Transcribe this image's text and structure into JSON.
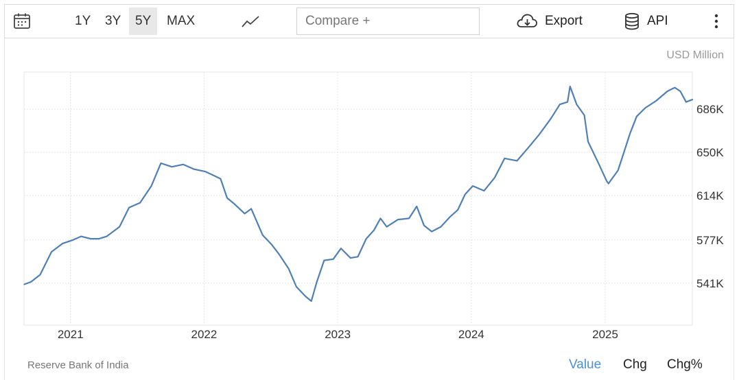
{
  "toolbar": {
    "ranges": [
      {
        "label": "1Y",
        "active": false
      },
      {
        "label": "3Y",
        "active": false
      },
      {
        "label": "5Y",
        "active": true
      },
      {
        "label": "MAX",
        "active": false
      }
    ],
    "compare_placeholder": "Compare +",
    "export_label": "Export",
    "api_label": "API",
    "icons": [
      "calendar-icon",
      "line-chart-icon",
      "cloud-download-icon",
      "database-icon",
      "more-vertical-icon"
    ]
  },
  "unit_label": "USD Million",
  "source": "Reserve Bank of India",
  "footer_tabs": [
    {
      "label": "Value",
      "active": true
    },
    {
      "label": "Chg",
      "active": false
    },
    {
      "label": "Chg%",
      "active": false
    }
  ],
  "colors": {
    "line": "#4f7fb4",
    "active_tab": "#4a90d6",
    "grid": "#e5e5e5"
  },
  "chart_data": {
    "type": "line",
    "title": "",
    "xlabel": "",
    "ylabel": "",
    "x_ticks": [
      "2021",
      "2022",
      "2023",
      "2024",
      "2025"
    ],
    "y_ticks": [
      {
        "value": 541000,
        "label": "541K"
      },
      {
        "value": 577000,
        "label": "577K"
      },
      {
        "value": 614000,
        "label": "614K"
      },
      {
        "value": 650000,
        "label": "650K"
      },
      {
        "value": 686000,
        "label": "686K"
      }
    ],
    "ylim": [
      506000,
      717000
    ],
    "xlim": [
      "2020-08-27",
      "2025-08-27"
    ],
    "grid": true,
    "series": [
      {
        "x": [
          "2020-08-28",
          "2020-09-15",
          "2020-10-10",
          "2020-11-10",
          "2020-12-10",
          "2021-01-08",
          "2021-01-30",
          "2021-02-25",
          "2021-03-20",
          "2021-04-10",
          "2021-05-15",
          "2021-06-10",
          "2021-07-10",
          "2021-08-10",
          "2021-09-05",
          "2021-10-05",
          "2021-11-05",
          "2021-12-05",
          "2022-01-05",
          "2022-02-15",
          "2022-03-05",
          "2022-03-25",
          "2022-04-22",
          "2022-05-10",
          "2022-06-10",
          "2022-07-05",
          "2022-07-25",
          "2022-08-20",
          "2022-09-10",
          "2022-10-05",
          "2022-10-21",
          "2022-11-05",
          "2022-11-25",
          "2022-12-20",
          "2023-01-10",
          "2023-02-05",
          "2023-02-25",
          "2023-03-20",
          "2023-04-10",
          "2023-04-28",
          "2023-05-15",
          "2023-06-15",
          "2023-07-15",
          "2023-08-05",
          "2023-08-25",
          "2023-09-15",
          "2023-10-10",
          "2023-11-03",
          "2023-11-25",
          "2023-12-15",
          "2024-01-05",
          "2024-02-05",
          "2024-03-05",
          "2024-04-01",
          "2024-05-05",
          "2024-06-05",
          "2024-07-05",
          "2024-08-05",
          "2024-08-30",
          "2024-09-20",
          "2024-09-27",
          "2024-10-15",
          "2024-11-05",
          "2024-11-15",
          "2024-12-15",
          "2025-01-05",
          "2025-01-10",
          "2025-02-05",
          "2025-02-20",
          "2025-03-10",
          "2025-03-28",
          "2025-04-20",
          "2025-05-20",
          "2025-06-20",
          "2025-07-10",
          "2025-07-25",
          "2025-08-10",
          "2025-08-27"
        ],
        "y": [
          540000,
          542000,
          548000,
          567000,
          574000,
          577000,
          580000,
          578000,
          578000,
          580000,
          588000,
          604000,
          608000,
          622000,
          641000,
          638000,
          640000,
          636000,
          634000,
          628000,
          612000,
          607000,
          599000,
          603000,
          581000,
          573000,
          565000,
          553000,
          538000,
          530000,
          526000,
          542000,
          560000,
          561000,
          570000,
          562000,
          563000,
          578000,
          585000,
          595000,
          588000,
          594000,
          595000,
          605000,
          589000,
          584000,
          588000,
          596000,
          602000,
          615000,
          622000,
          618000,
          629000,
          645000,
          643000,
          654000,
          665000,
          678000,
          690000,
          692000,
          705000,
          690000,
          681000,
          659000,
          640000,
          626000,
          624000,
          635000,
          649000,
          666000,
          680000,
          687000,
          693000,
          701000,
          704000,
          701000,
          692000,
          694000
        ]
      }
    ]
  }
}
